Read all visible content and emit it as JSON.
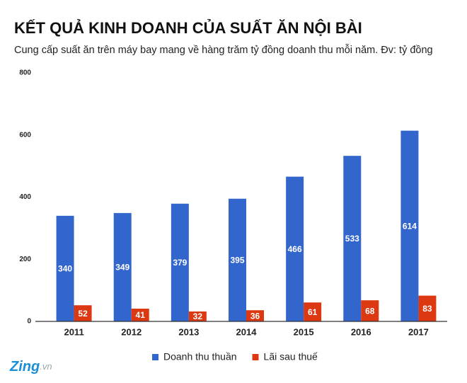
{
  "chart_data": {
    "type": "bar",
    "title": "KẾT QUẢ KINH DOANH CỦA SUẤT ĂN NỘI BÀI",
    "subtitle": "Cung cấp suất ăn trên máy bay mang về hàng trăm tỷ đồng doanh thu mỗi năm. Đv: tỷ đồng",
    "categories": [
      "2011",
      "2012",
      "2013",
      "2014",
      "2015",
      "2016",
      "2017"
    ],
    "series": [
      {
        "name": "Doanh thu thuần",
        "color": "#3366cc",
        "values": [
          340,
          349,
          379,
          395,
          466,
          533,
          614
        ]
      },
      {
        "name": "Lãi sau thuế",
        "color": "#dc3912",
        "values": [
          52,
          41,
          32,
          36,
          61,
          68,
          83
        ]
      }
    ],
    "ylim": [
      0,
      800
    ],
    "yticks": [
      0,
      200,
      400,
      600,
      800
    ],
    "grid": false,
    "legend": "bottom",
    "logo": {
      "main": "Zing",
      "suffix": ".vn"
    }
  }
}
